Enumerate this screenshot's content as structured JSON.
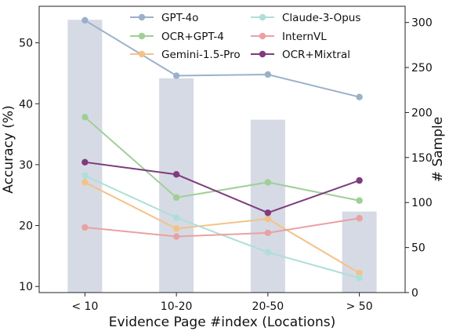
{
  "chart_data": {
    "type": "line",
    "categories": [
      "< 10",
      "10-20",
      "20-50",
      "> 50"
    ],
    "xlabel": "Evidence Page #index (Locations)",
    "ylabel": "Accuracy (%)",
    "y2label": "# Sample",
    "ylim": [
      9,
      56
    ],
    "y2lim": [
      0,
      318
    ],
    "yticks": [
      10,
      20,
      30,
      40,
      50
    ],
    "y2ticks": [
      0,
      50,
      100,
      150,
      200,
      250,
      300
    ],
    "bar_color": "#d6dae5",
    "bars": {
      "axis": "secondary",
      "values": [
        303,
        238,
        192,
        90
      ]
    },
    "series": [
      {
        "name": "GPT-4o",
        "color": "#9bb1c9",
        "values": [
          53.7,
          44.6,
          44.8,
          41.1
        ]
      },
      {
        "name": "OCR+GPT-4",
        "color": "#9fcf97",
        "values": [
          37.8,
          24.6,
          27.1,
          24.1
        ]
      },
      {
        "name": "Gemini-1.5-Pro",
        "color": "#f4c287",
        "values": [
          27.1,
          19.5,
          21.1,
          12.2
        ]
      },
      {
        "name": "Claude-3-Opus",
        "color": "#aedfd8",
        "values": [
          28.2,
          21.3,
          15.6,
          11.4
        ]
      },
      {
        "name": "InternVL",
        "color": "#e9a1a3",
        "values": [
          19.7,
          18.2,
          18.8,
          21.2
        ]
      },
      {
        "name": "OCR+Mixtral",
        "color": "#7f3b7e",
        "values": [
          30.4,
          28.4,
          22.1,
          27.4
        ]
      }
    ],
    "legend": {
      "placement": "top",
      "columns": 2
    },
    "grid": false
  }
}
